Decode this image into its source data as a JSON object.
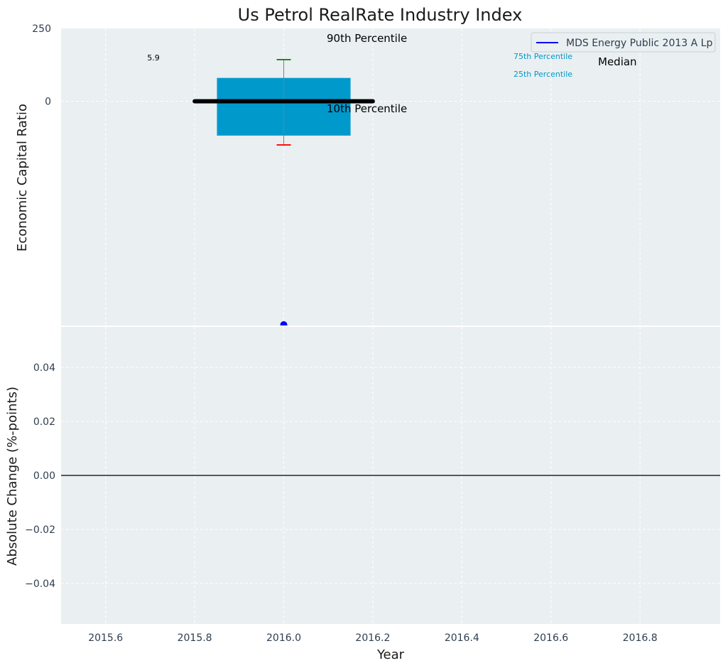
{
  "title": "Us Petrol RealRate Industry Index",
  "colors": {
    "panel_bg": "#eaeff1",
    "grid": "#ffffff",
    "box_fill": "#0099cc",
    "median_line": "#000000",
    "whisker_top_cap": "#008000",
    "whisker_bottom_cap": "#ff0000",
    "whisker_line": "#808080",
    "company_point": "#0000ff",
    "tick_text": "#2e3e50",
    "label_text": "#1a1a1a",
    "annotation_small": "#0099cc"
  },
  "chart_data": [
    {
      "type": "box",
      "ylabel": "Economic Capital Ratio",
      "ylim": [
        -770,
        250
      ],
      "ytick_labels": [
        "250",
        "0"
      ],
      "xlim": [
        2015.5,
        2016.98
      ],
      "grid": true,
      "box": {
        "x": 2016.0,
        "p10": -150,
        "p25": -118,
        "median": 0,
        "p75": 80,
        "p90": 143,
        "box_x_range": [
          2015.85,
          2016.15
        ],
        "median_x_range": [
          2015.8,
          2016.2
        ]
      },
      "point": {
        "x": 2016.0,
        "y": -770
      },
      "annotations": {
        "value_label": "5.9",
        "p90": "90th Percentile",
        "p10": "10th Percentile",
        "p75": "75th Percentile",
        "p25": "25th Percentile",
        "median": "Median"
      },
      "legend": {
        "position": "top-right",
        "entries": [
          "MDS Energy Public 2013 A Lp"
        ]
      }
    },
    {
      "type": "line",
      "xlabel": "Year",
      "ylabel": "Absolute Change (%-points)",
      "ylim": [
        -0.055,
        0.055
      ],
      "yticks": [
        0.04,
        0.02,
        0.0,
        -0.02,
        -0.04
      ],
      "ytick_labels": [
        "0.04",
        "0.02",
        "0.00",
        "−0.02",
        "−0.04"
      ],
      "xlim": [
        2015.5,
        2016.98
      ],
      "xticks": [
        2015.6,
        2015.8,
        2016.0,
        2016.2,
        2016.4,
        2016.6,
        2016.8
      ],
      "xtick_labels": [
        "2015.6",
        "2015.8",
        "2016.0",
        "2016.2",
        "2016.4",
        "2016.6",
        "2016.8"
      ],
      "reference_line": 0.0,
      "grid": true
    }
  ]
}
